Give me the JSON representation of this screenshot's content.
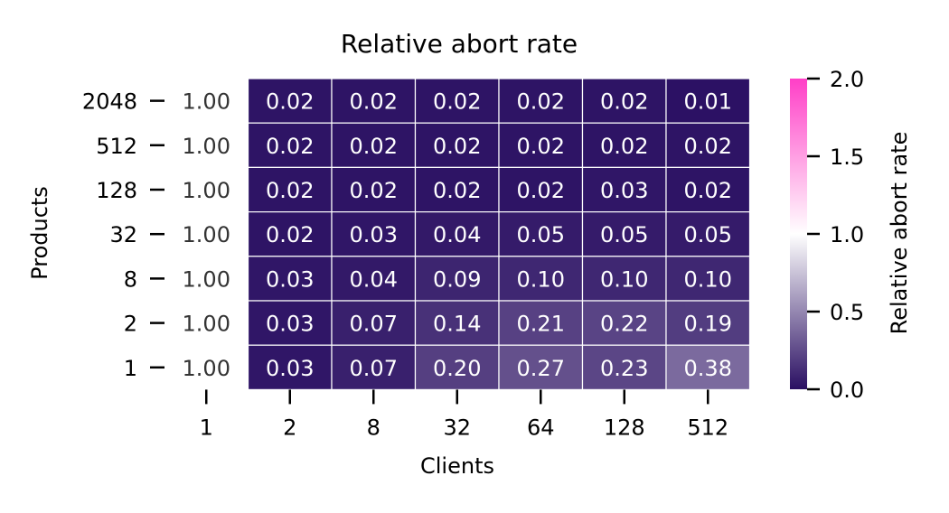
{
  "chart_data": {
    "type": "heatmap",
    "title": "Relative abort rate",
    "xlabel": "Clients",
    "ylabel": "Products",
    "x_categories": [
      "1",
      "2",
      "8",
      "32",
      "64",
      "128",
      "512"
    ],
    "y_categories": [
      "2048",
      "512",
      "128",
      "32",
      "8",
      "2",
      "1"
    ],
    "values": [
      [
        1.0,
        0.02,
        0.02,
        0.02,
        0.02,
        0.02,
        0.01
      ],
      [
        1.0,
        0.02,
        0.02,
        0.02,
        0.02,
        0.02,
        0.02
      ],
      [
        1.0,
        0.02,
        0.02,
        0.02,
        0.02,
        0.03,
        0.02
      ],
      [
        1.0,
        0.02,
        0.03,
        0.04,
        0.05,
        0.05,
        0.05
      ],
      [
        1.0,
        0.03,
        0.04,
        0.09,
        0.1,
        0.1,
        0.1
      ],
      [
        1.0,
        0.03,
        0.07,
        0.14,
        0.21,
        0.22,
        0.19
      ],
      [
        1.0,
        0.03,
        0.07,
        0.2,
        0.27,
        0.23,
        0.38
      ]
    ],
    "value_labels": [
      [
        "1.00",
        "0.02",
        "0.02",
        "0.02",
        "0.02",
        "0.02",
        "0.01"
      ],
      [
        "1.00",
        "0.02",
        "0.02",
        "0.02",
        "0.02",
        "0.02",
        "0.02"
      ],
      [
        "1.00",
        "0.02",
        "0.02",
        "0.02",
        "0.02",
        "0.03",
        "0.02"
      ],
      [
        "1.00",
        "0.02",
        "0.03",
        "0.04",
        "0.05",
        "0.05",
        "0.05"
      ],
      [
        "1.00",
        "0.03",
        "0.04",
        "0.09",
        "0.10",
        "0.10",
        "0.10"
      ],
      [
        "1.00",
        "0.03",
        "0.07",
        "0.14",
        "0.21",
        "0.22",
        "0.19"
      ],
      [
        "1.00",
        "0.03",
        "0.07",
        "0.20",
        "0.27",
        "0.23",
        "0.38"
      ]
    ],
    "colorbar": {
      "label": "Relative abort rate",
      "range": [
        0.0,
        2.0
      ],
      "ticks": [
        0.0,
        0.5,
        1.0,
        1.5,
        2.0
      ],
      "tick_labels": [
        "0.0",
        "0.5",
        "1.0",
        "1.5",
        "2.0"
      ],
      "colors": {
        "low": "#2a0f62",
        "mid": "#ffffff",
        "high": "#ff3fc7"
      }
    },
    "cell_border_color": "#ffffff",
    "text_color_dark_cell": "#ffffff",
    "text_color_light_cell": "#333333"
  }
}
